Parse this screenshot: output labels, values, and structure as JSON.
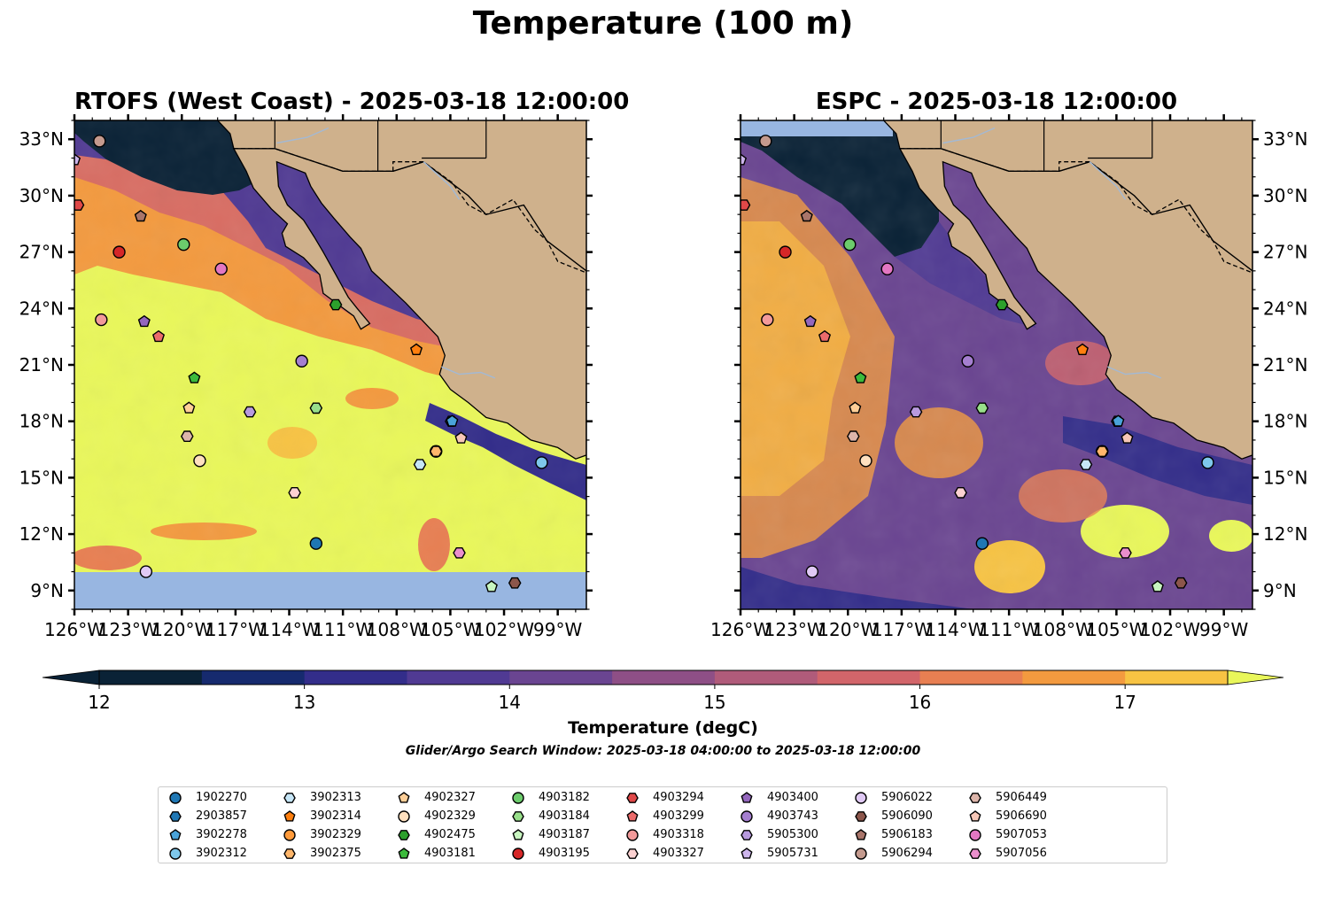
{
  "figure": {
    "title": "Temperature (100 m)"
  },
  "panels": [
    {
      "title": "RTOFS (West Coast) - 2025-03-18 12:00:00"
    },
    {
      "title": "ESPC - 2025-03-18 12:00:00"
    }
  ],
  "axes": {
    "lat_ticks": [
      "9°N",
      "12°N",
      "15°N",
      "18°N",
      "21°N",
      "24°N",
      "27°N",
      "30°N",
      "33°N"
    ],
    "lat_values": [
      9,
      12,
      15,
      18,
      21,
      24,
      27,
      30,
      33
    ],
    "lon_ticks": [
      "126°W",
      "123°W",
      "120°W",
      "117°W",
      "114°W",
      "111°W",
      "108°W",
      "105°W",
      "102°W",
      "99°W"
    ],
    "lon_values": [
      -126,
      -123,
      -120,
      -117,
      -114,
      -111,
      -108,
      -105,
      -102,
      -99
    ],
    "lon_range": [
      -126,
      -97.4
    ],
    "lat_range": [
      8,
      34
    ]
  },
  "colorbar": {
    "label": "Temperature (degC)",
    "ticks": [
      "12",
      "13",
      "14",
      "15",
      "16",
      "17"
    ],
    "tick_values": [
      12,
      13,
      14,
      15,
      16,
      17
    ],
    "range": [
      12,
      17.5
    ],
    "step": 0.5,
    "colors": [
      "#0a2236",
      "#162a6e",
      "#332d8a",
      "#503a93",
      "#6a4591",
      "#8e4f86",
      "#b05b7a",
      "#d2656a",
      "#e87f52",
      "#f39a3f",
      "#f7c343",
      "#e9f75a"
    ],
    "extend": "both"
  },
  "search_window": "Glider/Argo Search Window: 2025-03-18 04:00:00 to 2025-03-18 12:00:00",
  "colors": {
    "land": "#cfb18c",
    "ocean_mask": "#98b6e1",
    "river": "#a3b9d4"
  },
  "legend": [
    {
      "label": "1902270",
      "marker": "circle",
      "color": "#1f77b4"
    },
    {
      "label": "2903857",
      "marker": "hexagon",
      "color": "#1f77b4"
    },
    {
      "label": "3902278",
      "marker": "pentagon",
      "color": "#4aa3d9"
    },
    {
      "label": "3902312",
      "marker": "circle",
      "color": "#7ec7eb"
    },
    {
      "label": "3902313",
      "marker": "hexagon",
      "color": "#c6e6f7"
    },
    {
      "label": "3902314",
      "marker": "pentagon",
      "color": "#ff7f0e"
    },
    {
      "label": "3902329",
      "marker": "circle",
      "color": "#ff9a3a"
    },
    {
      "label": "3902375",
      "marker": "hexagon",
      "color": "#ffb66b"
    },
    {
      "label": "4902327",
      "marker": "pentagon",
      "color": "#ffcf98"
    },
    {
      "label": "4902329",
      "marker": "circle",
      "color": "#ffe0bf"
    },
    {
      "label": "4902475",
      "marker": "hexagon",
      "color": "#2ca02c"
    },
    {
      "label": "4903181",
      "marker": "pentagon",
      "color": "#3cba3c"
    },
    {
      "label": "4903182",
      "marker": "circle",
      "color": "#6ccc6c"
    },
    {
      "label": "4903184",
      "marker": "hexagon",
      "color": "#98df8a"
    },
    {
      "label": "4903187",
      "marker": "pentagon",
      "color": "#c8f5c0"
    },
    {
      "label": "4903195",
      "marker": "circle",
      "color": "#d62728"
    },
    {
      "label": "4903294",
      "marker": "hexagon",
      "color": "#e04848"
    },
    {
      "label": "4903299",
      "marker": "pentagon",
      "color": "#ec6b6b"
    },
    {
      "label": "4903318",
      "marker": "circle",
      "color": "#f29a9a"
    },
    {
      "label": "4903327",
      "marker": "hexagon",
      "color": "#fcd1d1"
    },
    {
      "label": "4903400",
      "marker": "pentagon",
      "color": "#9467bd"
    },
    {
      "label": "4903743",
      "marker": "circle",
      "color": "#a57fd0"
    },
    {
      "label": "5905300",
      "marker": "hexagon",
      "color": "#b89ade"
    },
    {
      "label": "5905731",
      "marker": "pentagon",
      "color": "#cdb5ec"
    },
    {
      "label": "5906022",
      "marker": "circle",
      "color": "#e0c9f5"
    },
    {
      "label": "5906090",
      "marker": "hexagon",
      "color": "#8c564b"
    },
    {
      "label": "5906183",
      "marker": "pentagon",
      "color": "#a9756a"
    },
    {
      "label": "5906294",
      "marker": "circle",
      "color": "#c49a8e"
    },
    {
      "label": "5906449",
      "marker": "hexagon",
      "color": "#ddb5aa"
    },
    {
      "label": "5906690",
      "marker": "pentagon",
      "color": "#f7c7b7"
    },
    {
      "label": "5907053",
      "marker": "circle",
      "color": "#e377c2"
    },
    {
      "label": "5907056",
      "marker": "hexagon",
      "color": "#ea8fcc"
    }
  ],
  "floats": [
    {
      "id": "1902270",
      "lon": -112.5,
      "lat": 11.5
    },
    {
      "id": "2903857",
      "lon": -104.95,
      "lat": 18.0
    },
    {
      "id": "3902278",
      "lon": -104.9,
      "lat": 18.0
    },
    {
      "id": "3902312",
      "lon": -99.9,
      "lat": 15.8
    },
    {
      "id": "3902313",
      "lon": -106.7,
      "lat": 15.7
    },
    {
      "id": "3902314",
      "lon": -106.9,
      "lat": 21.8
    },
    {
      "id": "3902329",
      "lon": -105.8,
      "lat": 16.4
    },
    {
      "id": "3902375",
      "lon": -105.8,
      "lat": 16.4
    },
    {
      "id": "4902327",
      "lon": -119.6,
      "lat": 18.7
    },
    {
      "id": "4902329",
      "lon": -119.0,
      "lat": 15.9
    },
    {
      "id": "4902475",
      "lon": -111.4,
      "lat": 24.2
    },
    {
      "id": "4903181",
      "lon": -119.3,
      "lat": 20.3
    },
    {
      "id": "4903182",
      "lon": -119.9,
      "lat": 27.4
    },
    {
      "id": "4903184",
      "lon": -112.5,
      "lat": 18.7
    },
    {
      "id": "4903187",
      "lon": -102.7,
      "lat": 9.2
    },
    {
      "id": "4903195",
      "lon": -123.5,
      "lat": 27.0
    },
    {
      "id": "4903294",
      "lon": -125.8,
      "lat": 29.5
    },
    {
      "id": "4903299",
      "lon": -121.3,
      "lat": 22.5
    },
    {
      "id": "4903318",
      "lon": -124.5,
      "lat": 23.4
    },
    {
      "id": "4903327",
      "lon": -113.7,
      "lat": 14.2
    },
    {
      "id": "4903400",
      "lon": -122.1,
      "lat": 23.3
    },
    {
      "id": "4903743",
      "lon": -113.3,
      "lat": 21.2
    },
    {
      "id": "5905300",
      "lon": -116.2,
      "lat": 18.5
    },
    {
      "id": "5905731",
      "lon": -126.0,
      "lat": 31.9
    },
    {
      "id": "5906022",
      "lon": -122.0,
      "lat": 10.0
    },
    {
      "id": "5906090",
      "lon": -101.4,
      "lat": 9.4
    },
    {
      "id": "5906183",
      "lon": -122.3,
      "lat": 28.9
    },
    {
      "id": "5906294",
      "lon": -124.6,
      "lat": 32.9
    },
    {
      "id": "5906449",
      "lon": -119.7,
      "lat": 17.2
    },
    {
      "id": "5906690",
      "lon": -104.4,
      "lat": 17.1
    },
    {
      "id": "5907053",
      "lon": -117.8,
      "lat": 26.1
    },
    {
      "id": "5907056",
      "lon": -104.5,
      "lat": 11.0
    }
  ]
}
